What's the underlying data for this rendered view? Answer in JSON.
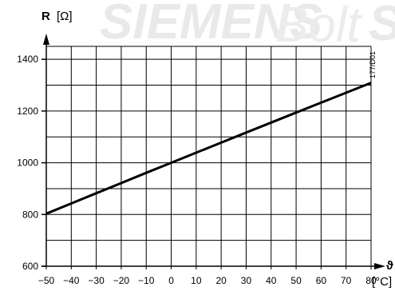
{
  "watermark": {
    "brand": "SIEMENS",
    "word": "Bolt",
    "tail": "S"
  },
  "doc_code": "177/D01",
  "chart_data": {
    "type": "line",
    "title": "",
    "ylabel_symbol": "R",
    "ylabel_unit": "[Ω]",
    "xlabel_symbol": "ϑ",
    "xlabel_unit": "[°C]",
    "xlim": [
      -50,
      80
    ],
    "ylim": [
      600,
      1450
    ],
    "x_ticks": [
      -50,
      -40,
      -30,
      -20,
      -10,
      0,
      10,
      20,
      30,
      40,
      50,
      60,
      70,
      80
    ],
    "x_tick_labels": [
      "−50",
      "−40",
      "−30",
      "−20",
      "−10",
      "0",
      "10",
      "20",
      "30",
      "40",
      "50",
      "60",
      "70",
      "80"
    ],
    "y_ticks": [
      600,
      800,
      1000,
      1200,
      1400
    ],
    "y_tick_labels": [
      "600",
      "800",
      "1000",
      "1200",
      "1400"
    ],
    "grid": true,
    "series": [
      {
        "x": [
          -50,
          -40,
          -30,
          -20,
          -10,
          0,
          10,
          20,
          30,
          40,
          50,
          60,
          70,
          80
        ],
        "y": [
          803.1,
          842.7,
          882.2,
          921.6,
          960.9,
          1000.0,
          1039.0,
          1077.9,
          1116.7,
          1155.4,
          1194.0,
          1232.4,
          1270.8,
          1309.0
        ]
      }
    ]
  }
}
